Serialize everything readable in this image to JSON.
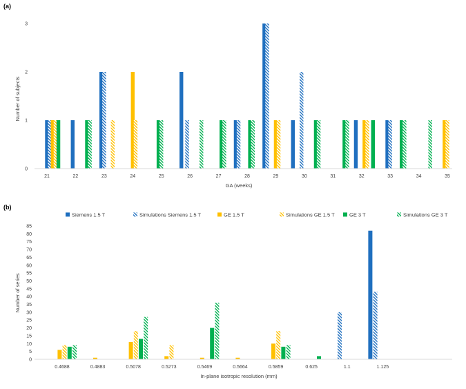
{
  "colors": {
    "siemens": "#1f6fbf",
    "ge15": "#ffc000",
    "ge3": "#00b050",
    "axis": "#d9d9d9",
    "text": "#404040"
  },
  "chart_data": [
    {
      "panel": "(a)",
      "type": "bar",
      "xlabel": "GA (weeks)",
      "ylabel": "Number of subjects",
      "ylim": [
        0,
        3
      ],
      "yticks": [
        0,
        1,
        2,
        3
      ],
      "grid": false,
      "categories": [
        "21",
        "22",
        "23",
        "24",
        "25",
        "26",
        "27",
        "28",
        "29",
        "30",
        "31",
        "32",
        "33",
        "34",
        "35"
      ],
      "bars": [
        {
          "x": 21.0,
          "value": 1,
          "series": "Siemens 1.5 T"
        },
        {
          "x": 21.1,
          "value": 1,
          "series": "Simulations Siemens 1.5 T"
        },
        {
          "x": 21.2,
          "value": 1,
          "series": "GE 1.5 T"
        },
        {
          "x": 21.3,
          "value": 1,
          "series": "Simulations GE 1.5 T"
        },
        {
          "x": 21.4,
          "value": 1,
          "series": "GE 3 T"
        },
        {
          "x": 21.9,
          "value": 1,
          "series": "Siemens 1.5 T"
        },
        {
          "x": 22.4,
          "value": 1,
          "series": "GE 3 T"
        },
        {
          "x": 22.5,
          "value": 1,
          "series": "Simulations GE 3 T"
        },
        {
          "x": 22.9,
          "value": 2,
          "series": "Siemens 1.5 T"
        },
        {
          "x": 23.0,
          "value": 2,
          "series": "Simulations Siemens 1.5 T"
        },
        {
          "x": 23.3,
          "value": 1,
          "series": "Simulations GE 1.5 T"
        },
        {
          "x": 24.0,
          "value": 2,
          "series": "GE 1.5 T"
        },
        {
          "x": 24.1,
          "value": 1,
          "series": "Simulations GE 1.5 T"
        },
        {
          "x": 24.9,
          "value": 1,
          "series": "GE 3 T"
        },
        {
          "x": 25.0,
          "value": 1,
          "series": "Simulations GE 3 T"
        },
        {
          "x": 25.7,
          "value": 2,
          "series": "Siemens 1.5 T"
        },
        {
          "x": 25.9,
          "value": 1,
          "series": "Simulations Siemens 1.5 T"
        },
        {
          "x": 26.4,
          "value": 1,
          "series": "Simulations GE 3 T"
        },
        {
          "x": 27.1,
          "value": 1,
          "series": "GE 3 T"
        },
        {
          "x": 27.2,
          "value": 1,
          "series": "Simulations GE 3 T"
        },
        {
          "x": 27.6,
          "value": 1,
          "series": "Siemens 1.5 T"
        },
        {
          "x": 27.7,
          "value": 1,
          "series": "Simulations Siemens 1.5 T"
        },
        {
          "x": 28.1,
          "value": 1,
          "series": "GE 3 T"
        },
        {
          "x": 28.2,
          "value": 1,
          "series": "Simulations GE 3 T"
        },
        {
          "x": 28.6,
          "value": 3,
          "series": "Siemens 1.5 T"
        },
        {
          "x": 28.7,
          "value": 3,
          "series": "Simulations Siemens 1.5 T"
        },
        {
          "x": 29.0,
          "value": 1,
          "series": "GE 1.5 T"
        },
        {
          "x": 29.1,
          "value": 1,
          "series": "Simulations GE 1.5 T"
        },
        {
          "x": 29.6,
          "value": 1,
          "series": "Siemens 1.5 T"
        },
        {
          "x": 29.9,
          "value": 2,
          "series": "Simulations Siemens 1.5 T"
        },
        {
          "x": 30.4,
          "value": 1,
          "series": "GE 3 T"
        },
        {
          "x": 30.5,
          "value": 1,
          "series": "Simulations GE 3 T"
        },
        {
          "x": 31.4,
          "value": 1,
          "series": "GE 3 T"
        },
        {
          "x": 31.5,
          "value": 1,
          "series": "Simulations GE 3 T"
        },
        {
          "x": 31.8,
          "value": 1,
          "series": "Siemens 1.5 T"
        },
        {
          "x": 32.1,
          "value": 1,
          "series": "GE 1.5 T"
        },
        {
          "x": 32.2,
          "value": 1,
          "series": "Simulations GE 1.5 T"
        },
        {
          "x": 32.4,
          "value": 1,
          "series": "GE 3 T"
        },
        {
          "x": 32.9,
          "value": 1,
          "series": "Siemens 1.5 T"
        },
        {
          "x": 33.0,
          "value": 1,
          "series": "Simulations Siemens 1.5 T"
        },
        {
          "x": 33.4,
          "value": 1,
          "series": "GE 3 T"
        },
        {
          "x": 33.5,
          "value": 1,
          "series": "Simulations GE 3 T"
        },
        {
          "x": 34.4,
          "value": 1,
          "series": "Simulations GE 3 T"
        },
        {
          "x": 34.9,
          "value": 1,
          "series": "GE 1.5 T"
        },
        {
          "x": 35.0,
          "value": 1,
          "series": "Simulations GE 1.5 T"
        }
      ]
    },
    {
      "panel": "(b)",
      "type": "bar",
      "xlabel": "In-plane isotropic resolution (mm)",
      "ylabel": "Number of series",
      "ylim": [
        0,
        85
      ],
      "yticks": [
        0,
        5,
        10,
        15,
        20,
        25,
        30,
        35,
        40,
        45,
        50,
        55,
        60,
        65,
        70,
        75,
        80,
        85
      ],
      "grid": false,
      "legend": "top",
      "categories": [
        "0.4688",
        "0.4883",
        "0.5078",
        "0.5273",
        "0.5469",
        "0.5664",
        "0.5859",
        "0.625",
        "1.1",
        "1.125"
      ],
      "series": [
        {
          "name": "Siemens 1.5 T",
          "pattern": "solid",
          "color": "#1f6fbf",
          "values": [
            0,
            0,
            0,
            0,
            0,
            0,
            0,
            0,
            0,
            82
          ]
        },
        {
          "name": "Simulations Siemens 1.5 T",
          "pattern": "hatched",
          "color": "#1f6fbf",
          "values": [
            0,
            0,
            0,
            0,
            0,
            0,
            0,
            0,
            30,
            43
          ]
        },
        {
          "name": "GE 1.5 T",
          "pattern": "solid",
          "color": "#ffc000",
          "values": [
            6,
            1,
            11,
            2,
            1,
            1,
            10,
            0,
            0,
            0
          ]
        },
        {
          "name": "Simulations GE 1.5 T",
          "pattern": "hatched",
          "color": "#ffc000",
          "values": [
            9,
            0,
            18,
            9,
            0,
            0,
            18,
            0,
            0,
            0
          ]
        },
        {
          "name": "GE 3 T",
          "pattern": "solid",
          "color": "#00b050",
          "values": [
            8,
            0,
            13,
            0,
            20,
            0,
            8,
            2,
            0,
            0
          ]
        },
        {
          "name": "Simulations GE 3 T",
          "pattern": "hatched",
          "color": "#00b050",
          "values": [
            9,
            0,
            27,
            0,
            36,
            0,
            9,
            0,
            0,
            0
          ]
        }
      ]
    }
  ]
}
